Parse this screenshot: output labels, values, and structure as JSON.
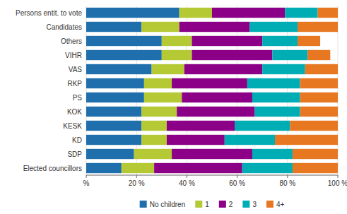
{
  "chart_data": {
    "type": "bar",
    "orientation": "horizontal",
    "stacked": true,
    "categories": [
      "Persons entit. to vote",
      "Candidates",
      "Others",
      "VIHR",
      "VAS",
      "RKP",
      "PS",
      "KOK",
      "KESK",
      "KD",
      "SDP",
      "Elected councillors"
    ],
    "series": [
      {
        "name": "No children",
        "color": "#1f6fad",
        "values": [
          37,
          22,
          30,
          30,
          26,
          23,
          23,
          22,
          22,
          22,
          19,
          14
        ]
      },
      {
        "name": "1",
        "color": "#b5c934",
        "values": [
          13,
          15,
          12,
          12,
          13,
          11,
          15,
          14,
          10,
          10,
          15,
          13
        ]
      },
      {
        "name": "2",
        "color": "#8b0086",
        "values": [
          29,
          28,
          28,
          32,
          31,
          30,
          28,
          31,
          27,
          23,
          32,
          35
        ]
      },
      {
        "name": "3",
        "color": "#00adb5",
        "values": [
          13,
          19,
          14,
          14,
          17,
          21,
          19,
          18,
          22,
          20,
          16,
          20
        ]
      },
      {
        "name": "4+",
        "color": "#e87722",
        "values": [
          8,
          16,
          9,
          9,
          13,
          15,
          15,
          15,
          19,
          25,
          18,
          18
        ]
      }
    ],
    "xlim": [
      0,
      100
    ],
    "xticks": [
      {
        "value": 0,
        "label": "%"
      },
      {
        "value": 20,
        "label": "20 %"
      },
      {
        "value": 40,
        "label": "40 %"
      },
      {
        "value": 60,
        "label": "60 %"
      },
      {
        "value": 80,
        "label": "80 %"
      },
      {
        "value": 100,
        "label": "100 %"
      }
    ],
    "grid": true,
    "legend": "bottom"
  }
}
